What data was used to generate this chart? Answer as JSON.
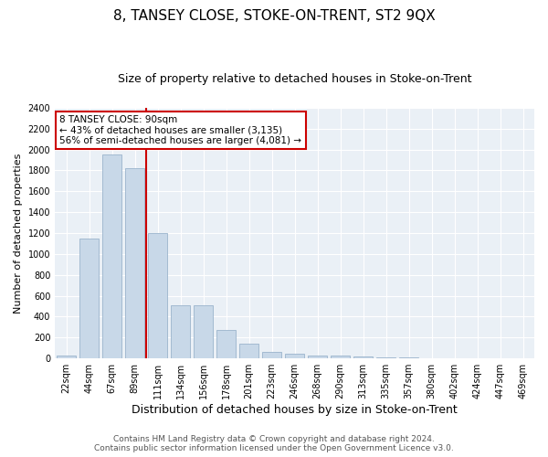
{
  "title": "8, TANSEY CLOSE, STOKE-ON-TRENT, ST2 9QX",
  "subtitle": "Size of property relative to detached houses in Stoke-on-Trent",
  "xlabel": "Distribution of detached houses by size in Stoke-on-Trent",
  "ylabel": "Number of detached properties",
  "categories": [
    "22sqm",
    "44sqm",
    "67sqm",
    "89sqm",
    "111sqm",
    "134sqm",
    "156sqm",
    "178sqm",
    "201sqm",
    "223sqm",
    "246sqm",
    "268sqm",
    "290sqm",
    "313sqm",
    "335sqm",
    "357sqm",
    "380sqm",
    "402sqm",
    "424sqm",
    "447sqm",
    "469sqm"
  ],
  "values": [
    30,
    1150,
    1950,
    1825,
    1200,
    510,
    510,
    270,
    145,
    65,
    45,
    30,
    25,
    15,
    10,
    8,
    5,
    4,
    3,
    2,
    2
  ],
  "bar_color": "#c8d8e8",
  "bar_edge_color": "#9ab4cc",
  "marker_index": 3,
  "marker_color": "#cc0000",
  "ylim": [
    0,
    2400
  ],
  "yticks": [
    0,
    200,
    400,
    600,
    800,
    1000,
    1200,
    1400,
    1600,
    1800,
    2000,
    2200,
    2400
  ],
  "annotation_title": "8 TANSEY CLOSE: 90sqm",
  "annotation_line1": "← 43% of detached houses are smaller (3,135)",
  "annotation_line2": "56% of semi-detached houses are larger (4,081) →",
  "annotation_box_color": "#cc0000",
  "footer_line1": "Contains HM Land Registry data © Crown copyright and database right 2024.",
  "footer_line2": "Contains public sector information licensed under the Open Government Licence v3.0.",
  "bg_color": "#eaf0f6",
  "grid_color": "#ffffff",
  "title_fontsize": 11,
  "subtitle_fontsize": 9,
  "xlabel_fontsize": 9,
  "ylabel_fontsize": 8,
  "tick_fontsize": 7,
  "footer_fontsize": 6.5
}
